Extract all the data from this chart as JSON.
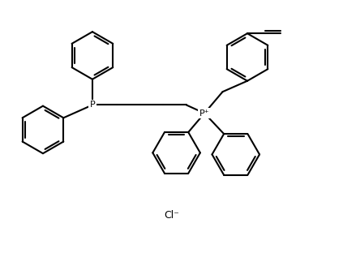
{
  "background_color": "#ffffff",
  "line_color": "#000000",
  "line_width": 1.5,
  "figure_width": 4.23,
  "figure_height": 3.28,
  "dpi": 100,
  "label_P1": "P",
  "label_P2": "P⁺",
  "label_Cl": "Cl⁻",
  "font_size_atom": 8,
  "font_size_cl": 9
}
